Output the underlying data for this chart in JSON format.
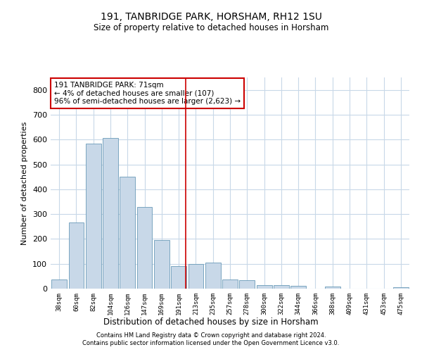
{
  "title1": "191, TANBRIDGE PARK, HORSHAM, RH12 1SU",
  "title2": "Size of property relative to detached houses in Horsham",
  "xlabel": "Distribution of detached houses by size in Horsham",
  "ylabel": "Number of detached properties",
  "categories": [
    "38sqm",
    "60sqm",
    "82sqm",
    "104sqm",
    "126sqm",
    "147sqm",
    "169sqm",
    "191sqm",
    "213sqm",
    "235sqm",
    "257sqm",
    "278sqm",
    "300sqm",
    "322sqm",
    "344sqm",
    "366sqm",
    "388sqm",
    "409sqm",
    "431sqm",
    "453sqm",
    "475sqm"
  ],
  "values": [
    38,
    265,
    585,
    605,
    450,
    330,
    195,
    90,
    100,
    105,
    38,
    33,
    15,
    15,
    10,
    0,
    8,
    0,
    0,
    0,
    7
  ],
  "bar_color": "#c8d8e8",
  "bar_edge_color": "#6a9ab8",
  "grid_color": "#c8d8e8",
  "vline_index": 7,
  "vline_color": "#cc0000",
  "annotation_text": "191 TANBRIDGE PARK: 71sqm\n← 4% of detached houses are smaller (107)\n96% of semi-detached houses are larger (2,623) →",
  "annotation_box_color": "#cc0000",
  "footer1": "Contains HM Land Registry data © Crown copyright and database right 2024.",
  "footer2": "Contains public sector information licensed under the Open Government Licence v3.0.",
  "ylim": [
    0,
    850
  ],
  "yticks": [
    0,
    100,
    200,
    300,
    400,
    500,
    600,
    700,
    800
  ],
  "background_color": "#ffffff"
}
